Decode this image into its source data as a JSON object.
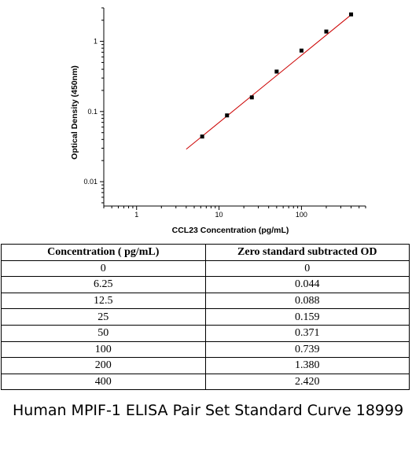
{
  "chart_data": {
    "type": "scatter",
    "xlabel": "CCL23 Concentration (pg/mL)",
    "ylabel": "Optical Density (450nm)",
    "x_scale": "log",
    "y_scale": "log",
    "xlim": [
      0.4,
      600
    ],
    "ylim": [
      0.0045,
      3.0
    ],
    "x_ticks": [
      1,
      10,
      100
    ],
    "x_tick_labels": [
      "1",
      "10",
      "100"
    ],
    "y_ticks": [
      0.01,
      0.1,
      1
    ],
    "y_tick_labels": [
      "0.01",
      "0.1",
      "1"
    ],
    "grid": false,
    "series": [
      {
        "x": [
          6.25,
          12.5,
          25,
          50,
          100,
          200,
          400
        ],
        "y": [
          0.044,
          0.088,
          0.159,
          0.371,
          0.739,
          1.38,
          2.42
        ],
        "marker_color": "#000000"
      }
    ],
    "fit_line": {
      "x": [
        4,
        420
      ],
      "y": [
        0.029,
        2.5
      ],
      "color": "#cc0000"
    }
  },
  "table": {
    "headers": [
      "Concentration ( pg/mL)",
      "Zero standard subtracted OD"
    ],
    "rows": [
      [
        "0",
        "0"
      ],
      [
        "6.25",
        "0.044"
      ],
      [
        "12.5",
        "0.088"
      ],
      [
        "25",
        "0.159"
      ],
      [
        "50",
        "0.371"
      ],
      [
        "100",
        "0.739"
      ],
      [
        "200",
        "1.380"
      ],
      [
        "400",
        "2.420"
      ]
    ]
  },
  "caption": "Human MPIF-1 ELISA Pair Set Standard Curve 18999"
}
